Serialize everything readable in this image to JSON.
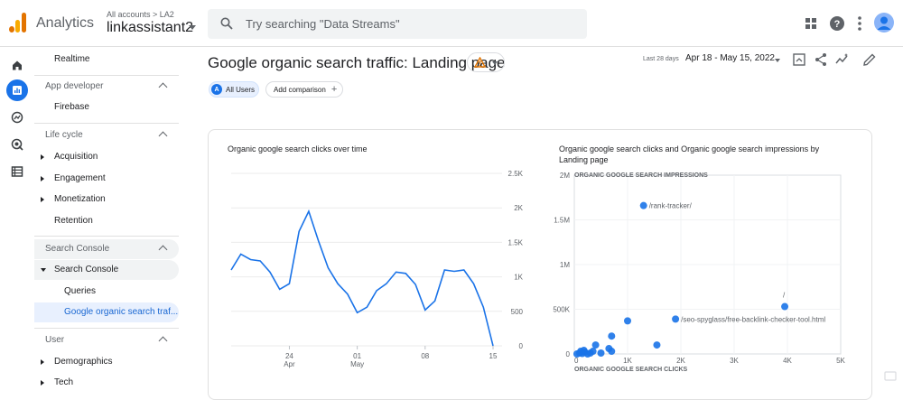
{
  "topbar": {
    "app_name": "Analytics",
    "account_path": "All accounts > LA2",
    "account_name": "linkassistant2",
    "search_placeholder": "Try searching \"Data Streams\""
  },
  "nav": {
    "realtime": "Realtime",
    "app_developer": "App developer",
    "firebase": "Firebase",
    "life_cycle": "Life cycle",
    "acquisition": "Acquisition",
    "engagement": "Engagement",
    "monetization": "Monetization",
    "retention": "Retention",
    "search_console_section": "Search Console",
    "search_console": "Search Console",
    "queries": "Queries",
    "organic_traffic": "Google organic search traf...",
    "user": "User",
    "demographics": "Demographics",
    "tech": "Tech"
  },
  "page": {
    "title": "Google organic search traffic: Landing page",
    "date_prefix": "Last 28 days",
    "date_range": "Apr 18 - May 15, 2022",
    "chip_all_letter": "A",
    "chip_all": "All Users",
    "chip_add": "Add comparison"
  },
  "colors": {
    "accent": "#1a73e8",
    "warning": "#e37400"
  },
  "chart_data": [
    {
      "type": "line",
      "title": "Organic google search clicks over time",
      "x_ticks": [
        {
          "day": "24",
          "month": "Apr"
        },
        {
          "day": "01",
          "month": "May"
        },
        {
          "day": "08",
          "month": ""
        },
        {
          "day": "15",
          "month": ""
        }
      ],
      "y_ticks": [
        "2.5K",
        "2K",
        "1.5K",
        "1K",
        "500",
        "0"
      ],
      "ylim": [
        0,
        2500
      ],
      "x": [
        "Apr 18",
        "Apr 19",
        "Apr 20",
        "Apr 21",
        "Apr 22",
        "Apr 23",
        "Apr 24",
        "Apr 25",
        "Apr 26",
        "Apr 27",
        "Apr 28",
        "Apr 29",
        "Apr 30",
        "May 1",
        "May 2",
        "May 3",
        "May 4",
        "May 5",
        "May 6",
        "May 7",
        "May 8",
        "May 9",
        "May 10",
        "May 11",
        "May 12",
        "May 13",
        "May 14",
        "May 15"
      ],
      "values": [
        1100,
        1330,
        1250,
        1230,
        1070,
        820,
        900,
        1660,
        1950,
        1520,
        1130,
        900,
        750,
        480,
        560,
        800,
        900,
        1070,
        1050,
        890,
        520,
        650,
        1100,
        1080,
        1100,
        900,
        560,
        0
      ]
    },
    {
      "type": "scatter",
      "title": "Organic google search clicks and Organic google search impressions by Landing page",
      "xlabel": "ORGANIC GOOGLE SEARCH CLICKS",
      "ylabel": "ORGANIC GOOGLE SEARCH IMPRESSIONS",
      "x_ticks": [
        "0",
        "1K",
        "2K",
        "3K",
        "4K",
        "5K"
      ],
      "y_ticks": [
        "2M",
        "1.5M",
        "1M",
        "500K",
        "0"
      ],
      "xlim": [
        0,
        5000
      ],
      "ylim": [
        0,
        2000000
      ],
      "points": [
        {
          "x": 1300,
          "y": 1660000,
          "label": "/rank-tracker/"
        },
        {
          "x": 3950,
          "y": 530000,
          "label": "/"
        },
        {
          "x": 1900,
          "y": 390000,
          "label": "/seo-spyglass/free-backlink-checker-tool.html"
        },
        {
          "x": 1000,
          "y": 370000,
          "label": ""
        },
        {
          "x": 700,
          "y": 200000,
          "label": ""
        },
        {
          "x": 1550,
          "y": 100000,
          "label": ""
        },
        {
          "x": 400,
          "y": 100000,
          "label": ""
        },
        {
          "x": 650,
          "y": 60000,
          "label": ""
        },
        {
          "x": 700,
          "y": 30000,
          "label": ""
        },
        {
          "x": 500,
          "y": 10000,
          "label": ""
        },
        {
          "x": 350,
          "y": 30000,
          "label": ""
        },
        {
          "x": 300,
          "y": 10000,
          "label": ""
        },
        {
          "x": 200,
          "y": 20000,
          "label": ""
        },
        {
          "x": 150,
          "y": 5000,
          "label": ""
        },
        {
          "x": 100,
          "y": 10000,
          "label": ""
        },
        {
          "x": 250,
          "y": 0,
          "label": ""
        },
        {
          "x": 50,
          "y": 0,
          "label": ""
        },
        {
          "x": 180,
          "y": 40000,
          "label": ""
        },
        {
          "x": 120,
          "y": 30000,
          "label": ""
        }
      ]
    }
  ]
}
